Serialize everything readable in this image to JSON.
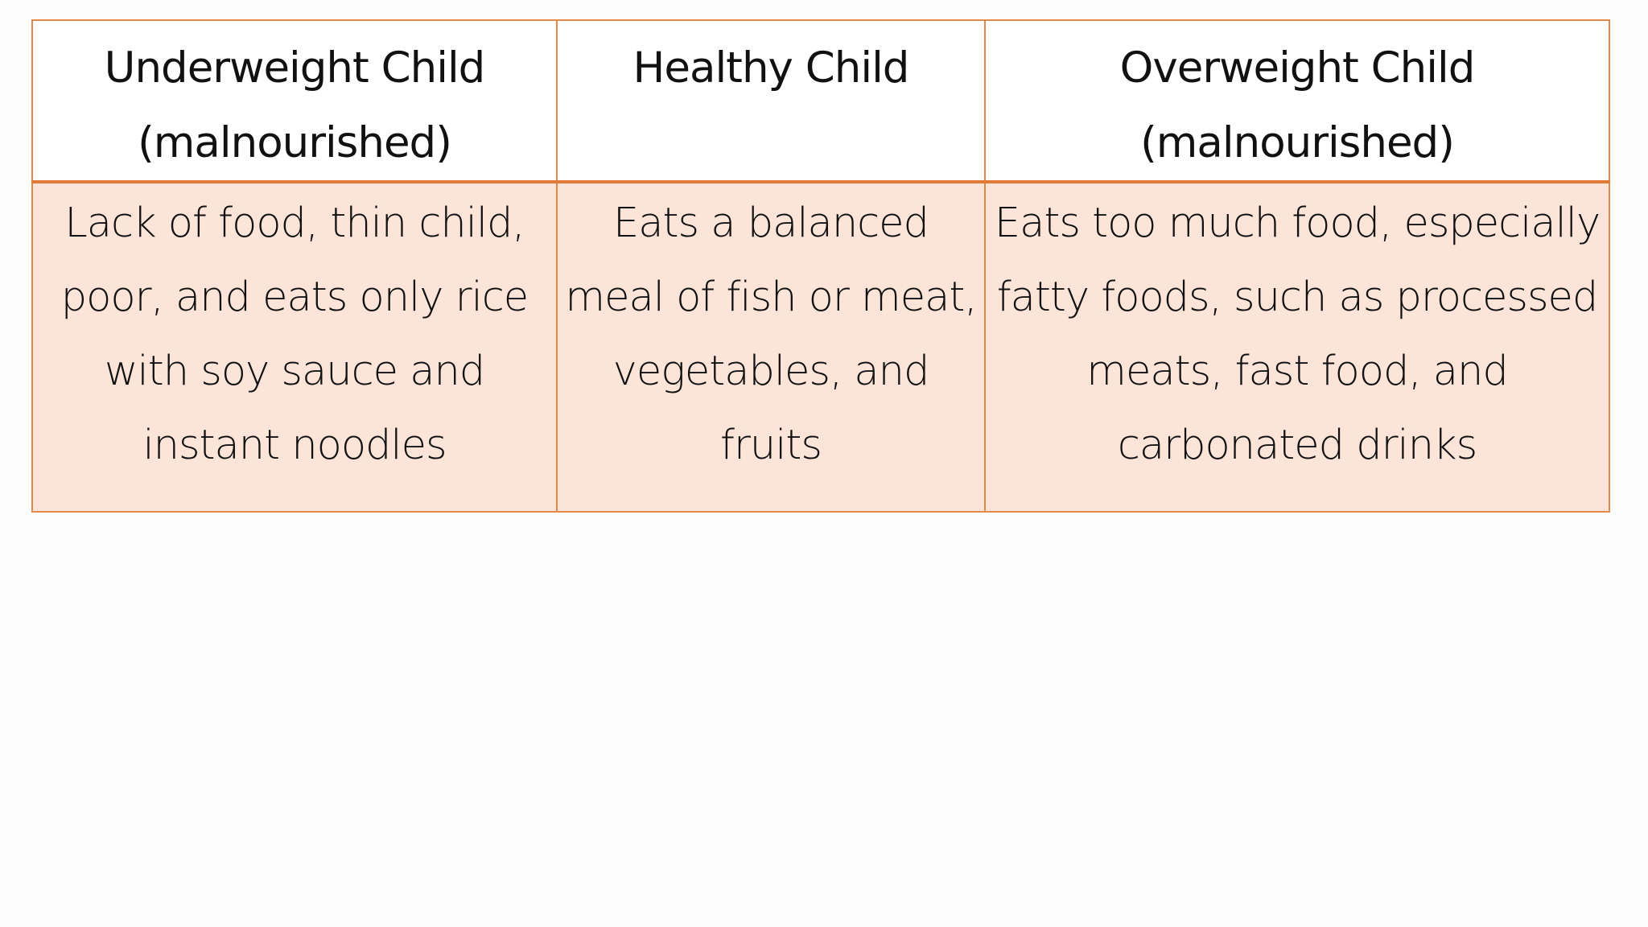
{
  "table": {
    "headers": [
      "Underweight Child (malnourished)",
      "Healthy Child",
      "Overweight Child (malnourished)"
    ],
    "rows": [
      [
        "Lack of food, thin child, poor, and eats only rice with soy sauce and instant noodles",
        "Eats a balanced meal of fish or meat, vegetables, and fruits",
        "Eats too much food, especially fatty foods, such as processed meats, fast food, and carbonated drinks"
      ]
    ]
  },
  "colors": {
    "border": "#e48a48",
    "header_background": "#ffffff",
    "body_background": "#fce4d8",
    "page_background": "#fdfdfd"
  }
}
